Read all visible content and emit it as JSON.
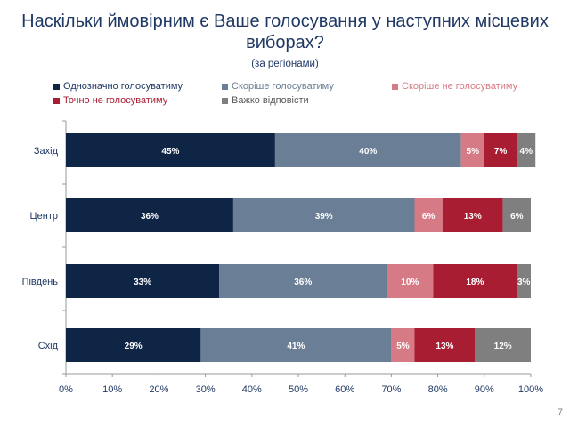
{
  "header": {
    "title_line1": "Наскільки ймовірним є Ваше голосування у наступних місцевих",
    "title_line2": "виборах?",
    "subtitle": "(за регіонами)"
  },
  "page_number": "7",
  "chart_data": {
    "type": "bar",
    "orientation": "horizontal",
    "stacked": true,
    "title": "Наскільки ймовірним є Ваше голосування у наступних місцевих виборах?",
    "subtitle": "(за регіонами)",
    "categories": [
      "Захід",
      "Центр",
      "Південь",
      "Схід"
    ],
    "series": [
      {
        "name": "Однозначно голосуватиму",
        "values": [
          45,
          36,
          33,
          29
        ],
        "labels": [
          "45%",
          "36%",
          "33%",
          "29%"
        ],
        "color": "#0f2546",
        "label_color": "#ffffff",
        "legend_color": "#1f3864"
      },
      {
        "name": "Скоріше голосуватиму",
        "values": [
          40,
          39,
          36,
          41
        ],
        "labels": [
          "40%",
          "39%",
          "36%",
          "41%"
        ],
        "color": "#6a7f96",
        "label_color": "#ffffff",
        "legend_color": "#6a7f96"
      },
      {
        "name": "Скоріше не голосуватиму",
        "values": [
          5,
          6,
          10,
          5
        ],
        "labels": [
          "5%",
          "6%",
          "10%",
          "5%"
        ],
        "color": "#d67b86",
        "label_color": "#ffffff",
        "legend_color": "#d67b86"
      },
      {
        "name": "Точно не голосуватиму",
        "values": [
          7,
          13,
          18,
          13
        ],
        "labels": [
          "7%",
          "13%",
          "18%",
          "13%"
        ],
        "color": "#a91d32",
        "label_color": "#ffffff",
        "legend_color": "#a91d32"
      },
      {
        "name": "Важко відповісти",
        "values": [
          4,
          6,
          3,
          12
        ],
        "labels": [
          "4%",
          "6%",
          "3%",
          "12%"
        ],
        "color": "#7f7f7f",
        "label_color": "#ffffff",
        "legend_color": "#595959"
      }
    ],
    "xlim": [
      0,
      100
    ],
    "xticks": [
      0,
      10,
      20,
      30,
      40,
      50,
      60,
      70,
      80,
      90,
      100
    ],
    "xtick_labels": [
      "0%",
      "10%",
      "20%",
      "30%",
      "40%",
      "50%",
      "60%",
      "70%",
      "80%",
      "90%",
      "100%"
    ],
    "legend_position": "top",
    "grid": false
  }
}
